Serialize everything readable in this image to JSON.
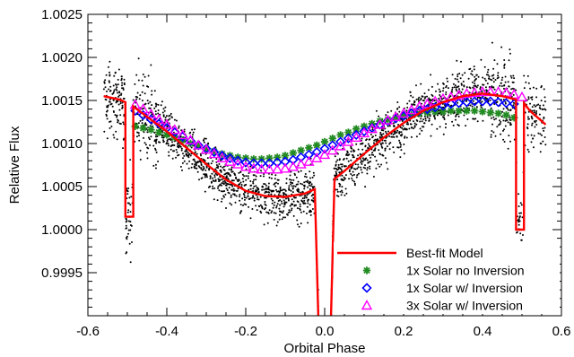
{
  "chart_data": {
    "type": "scatter",
    "xlabel": "Orbital Phase",
    "ylabel": "Relative Flux",
    "xlim": [
      -0.6,
      0.6
    ],
    "ylim": [
      0.999,
      1.0025
    ],
    "x_ticks": [
      -0.6,
      -0.4,
      -0.2,
      0.0,
      0.2,
      0.4,
      0.6
    ],
    "x_tick_labels": [
      "-0.6",
      "-0.4",
      "-0.2",
      "0.0",
      "0.2",
      "0.4",
      "0.6"
    ],
    "y_ticks": [
      0.9995,
      1.0,
      1.0005,
      1.001,
      1.0015,
      1.002,
      1.0025
    ],
    "y_tick_labels": [
      "0.9995",
      "1.0000",
      "1.0005",
      "1.0010",
      "1.0015",
      "1.0020",
      "1.0025"
    ],
    "legend_position": "bottom-right",
    "legend": [
      {
        "label": "Best-fit Model",
        "marker": "line",
        "color": "#ff0000"
      },
      {
        "label": "1x Solar no Inversion",
        "marker": "asterisk",
        "color": "#228b22"
      },
      {
        "label": "1x Solar w/ Inversion",
        "marker": "diamond",
        "color": "#0000ff"
      },
      {
        "label": "3x Solar w/ Inversion",
        "marker": "triangle",
        "color": "#ff00ff"
      }
    ],
    "best_fit_model": {
      "name": "Best-fit Model",
      "color": "#ff0000",
      "x": [
        -0.56,
        -0.52,
        -0.505,
        -0.505,
        -0.485,
        -0.485,
        -0.45,
        -0.4,
        -0.35,
        -0.3,
        -0.25,
        -0.2,
        -0.15,
        -0.1,
        -0.05,
        -0.025,
        -0.025,
        -0.015,
        -0.015,
        0.015,
        0.015,
        0.025,
        0.025,
        0.05,
        0.1,
        0.15,
        0.2,
        0.25,
        0.3,
        0.35,
        0.4,
        0.45,
        0.485,
        0.485,
        0.505,
        0.505,
        0.52,
        0.56
      ],
      "y": [
        1.00155,
        1.00151,
        1.00148,
        1.00015,
        1.00015,
        1.00143,
        1.00131,
        1.00114,
        1.00095,
        1.00076,
        1.00058,
        1.00045,
        1.00039,
        1.00038,
        1.00042,
        1.00047,
        1.00047,
        0.9988,
        0.9988,
        0.9988,
        0.9988,
        1.00059,
        1.00059,
        1.00068,
        1.00088,
        1.00107,
        1.00124,
        1.00138,
        1.00148,
        1.00155,
        1.00158,
        1.00155,
        1.00151,
        1.0,
        1.0,
        1.00147,
        1.00138,
        1.00122
      ]
    },
    "series": [
      {
        "name": "1x Solar no Inversion",
        "color": "#228b22",
        "marker": "asterisk",
        "x": [
          -0.48,
          -0.46,
          -0.44,
          -0.42,
          -0.4,
          -0.38,
          -0.36,
          -0.34,
          -0.32,
          -0.3,
          -0.28,
          -0.26,
          -0.24,
          -0.22,
          -0.2,
          -0.18,
          -0.16,
          -0.14,
          -0.12,
          -0.1,
          -0.08,
          -0.06,
          -0.04,
          -0.02,
          0.0,
          0.02,
          0.04,
          0.06,
          0.08,
          0.1,
          0.12,
          0.14,
          0.16,
          0.18,
          0.2,
          0.22,
          0.24,
          0.26,
          0.28,
          0.3,
          0.32,
          0.34,
          0.36,
          0.38,
          0.4,
          0.42,
          0.44,
          0.46,
          0.48
        ],
        "y": [
          1.0012,
          1.00118,
          1.00116,
          1.00113,
          1.0011,
          1.00107,
          1.00104,
          1.001,
          1.00097,
          1.00094,
          1.00091,
          1.00088,
          1.00086,
          1.00084,
          1.00083,
          1.00082,
          1.00082,
          1.00083,
          1.00084,
          1.00086,
          1.00089,
          1.00092,
          1.00095,
          1.00098,
          1.00102,
          1.00106,
          1.0011,
          1.00113,
          1.00117,
          1.0012,
          1.00123,
          1.00126,
          1.00128,
          1.0013,
          1.00132,
          1.00133,
          1.00135,
          1.00136,
          1.00137,
          1.00137,
          1.00138,
          1.00138,
          1.00138,
          1.00138,
          1.00137,
          1.00136,
          1.00135,
          1.00133,
          1.0013
        ]
      },
      {
        "name": "1x Solar w/ Inversion",
        "color": "#0000ff",
        "marker": "diamond",
        "x": [
          -0.48,
          -0.46,
          -0.44,
          -0.42,
          -0.4,
          -0.38,
          -0.36,
          -0.34,
          -0.32,
          -0.3,
          -0.28,
          -0.26,
          -0.24,
          -0.22,
          -0.2,
          -0.18,
          -0.16,
          -0.14,
          -0.12,
          -0.1,
          -0.08,
          -0.06,
          -0.04,
          -0.02,
          0.0,
          0.02,
          0.04,
          0.06,
          0.08,
          0.1,
          0.12,
          0.14,
          0.16,
          0.18,
          0.2,
          0.22,
          0.24,
          0.26,
          0.28,
          0.3,
          0.32,
          0.34,
          0.36,
          0.38,
          0.4,
          0.42,
          0.44,
          0.46,
          0.48
        ],
        "y": [
          1.00138,
          1.00133,
          1.00128,
          1.00123,
          1.00118,
          1.00113,
          1.00108,
          1.00103,
          1.00098,
          1.00094,
          1.0009,
          1.00086,
          1.00083,
          1.0008,
          1.00078,
          1.00077,
          1.00077,
          1.00077,
          1.00078,
          1.00079,
          1.00081,
          1.00084,
          1.00087,
          1.0009,
          1.00094,
          1.00098,
          1.00102,
          1.00106,
          1.0011,
          1.00114,
          1.00118,
          1.00122,
          1.00126,
          1.00129,
          1.00132,
          1.00135,
          1.00138,
          1.0014,
          1.00142,
          1.00144,
          1.00146,
          1.00147,
          1.00148,
          1.00149,
          1.00149,
          1.00149,
          1.00148,
          1.00147,
          1.00146
        ]
      },
      {
        "name": "3x Solar w/ Inversion",
        "color": "#ff00ff",
        "marker": "triangle",
        "x": [
          -0.48,
          -0.46,
          -0.44,
          -0.42,
          -0.4,
          -0.38,
          -0.36,
          -0.34,
          -0.32,
          -0.3,
          -0.28,
          -0.26,
          -0.24,
          -0.22,
          -0.2,
          -0.18,
          -0.16,
          -0.14,
          -0.12,
          -0.1,
          -0.08,
          -0.06,
          -0.04,
          -0.02,
          0.0,
          0.02,
          0.04,
          0.06,
          0.08,
          0.1,
          0.12,
          0.14,
          0.16,
          0.18,
          0.2,
          0.22,
          0.24,
          0.26,
          0.28,
          0.3,
          0.32,
          0.34,
          0.36,
          0.38,
          0.4,
          0.42,
          0.44,
          0.46,
          0.48,
          0.5
        ],
        "y": [
          1.00145,
          1.0014,
          1.00134,
          1.00128,
          1.00122,
          1.00116,
          1.0011,
          1.00104,
          1.00098,
          1.00093,
          1.00088,
          1.00083,
          1.00079,
          1.00076,
          1.00073,
          1.00071,
          1.0007,
          1.0007,
          1.0007,
          1.00071,
          1.00073,
          1.00076,
          1.00079,
          1.00083,
          1.00087,
          1.00092,
          1.00097,
          1.00102,
          1.00107,
          1.00112,
          1.00117,
          1.00122,
          1.00127,
          1.00131,
          1.00135,
          1.00139,
          1.00143,
          1.00146,
          1.00149,
          1.00152,
          1.00154,
          1.00156,
          1.00158,
          1.00159,
          1.0016,
          1.0016,
          1.0016,
          1.00159,
          1.00157,
          1.00154
        ]
      }
    ],
    "observations": {
      "name": "Data",
      "color": "#000000",
      "marker": "dot",
      "x_range": [
        -0.56,
        0.56
      ],
      "count": 2400,
      "noise_sigma": 0.00014,
      "follows": "best_fit_model"
    }
  }
}
